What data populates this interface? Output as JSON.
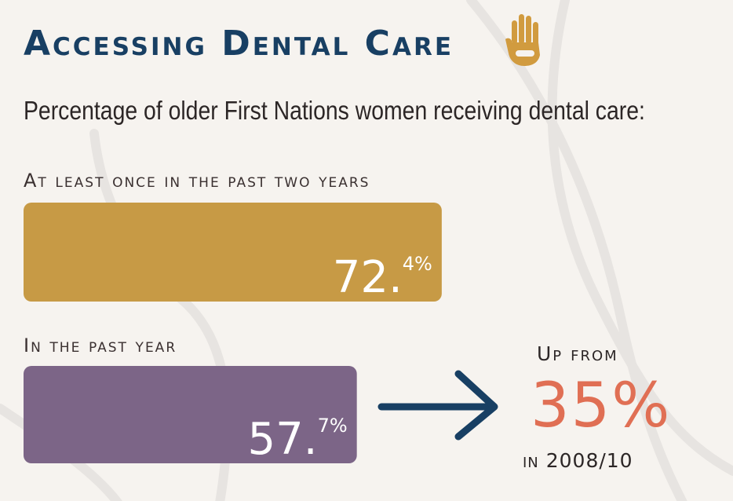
{
  "title": "Accessing Dental Care",
  "subtitle": "Percentage of older First Nations women receiving dental care:",
  "icon": "hand-icon",
  "colors": {
    "title": "#183f63",
    "bar_two_years": "#c79a45",
    "bar_past_year": "#7c6587",
    "arrow": "#183f63",
    "previous_value": "#e06f54",
    "hand": "#d19b3f"
  },
  "chart_data": {
    "type": "bar",
    "orientation": "horizontal",
    "categories": [
      "At least once in the past two years",
      "In the past year"
    ],
    "values": [
      72.4,
      57.7
    ],
    "value_labels": [
      {
        "main": "72.",
        "sup": "4%"
      },
      {
        "main": "57.",
        "sup": "7%"
      }
    ],
    "xlim": [
      0,
      100
    ]
  },
  "comparison": {
    "prefix": "Up from",
    "value": "35%",
    "period": "in 2008/10"
  }
}
